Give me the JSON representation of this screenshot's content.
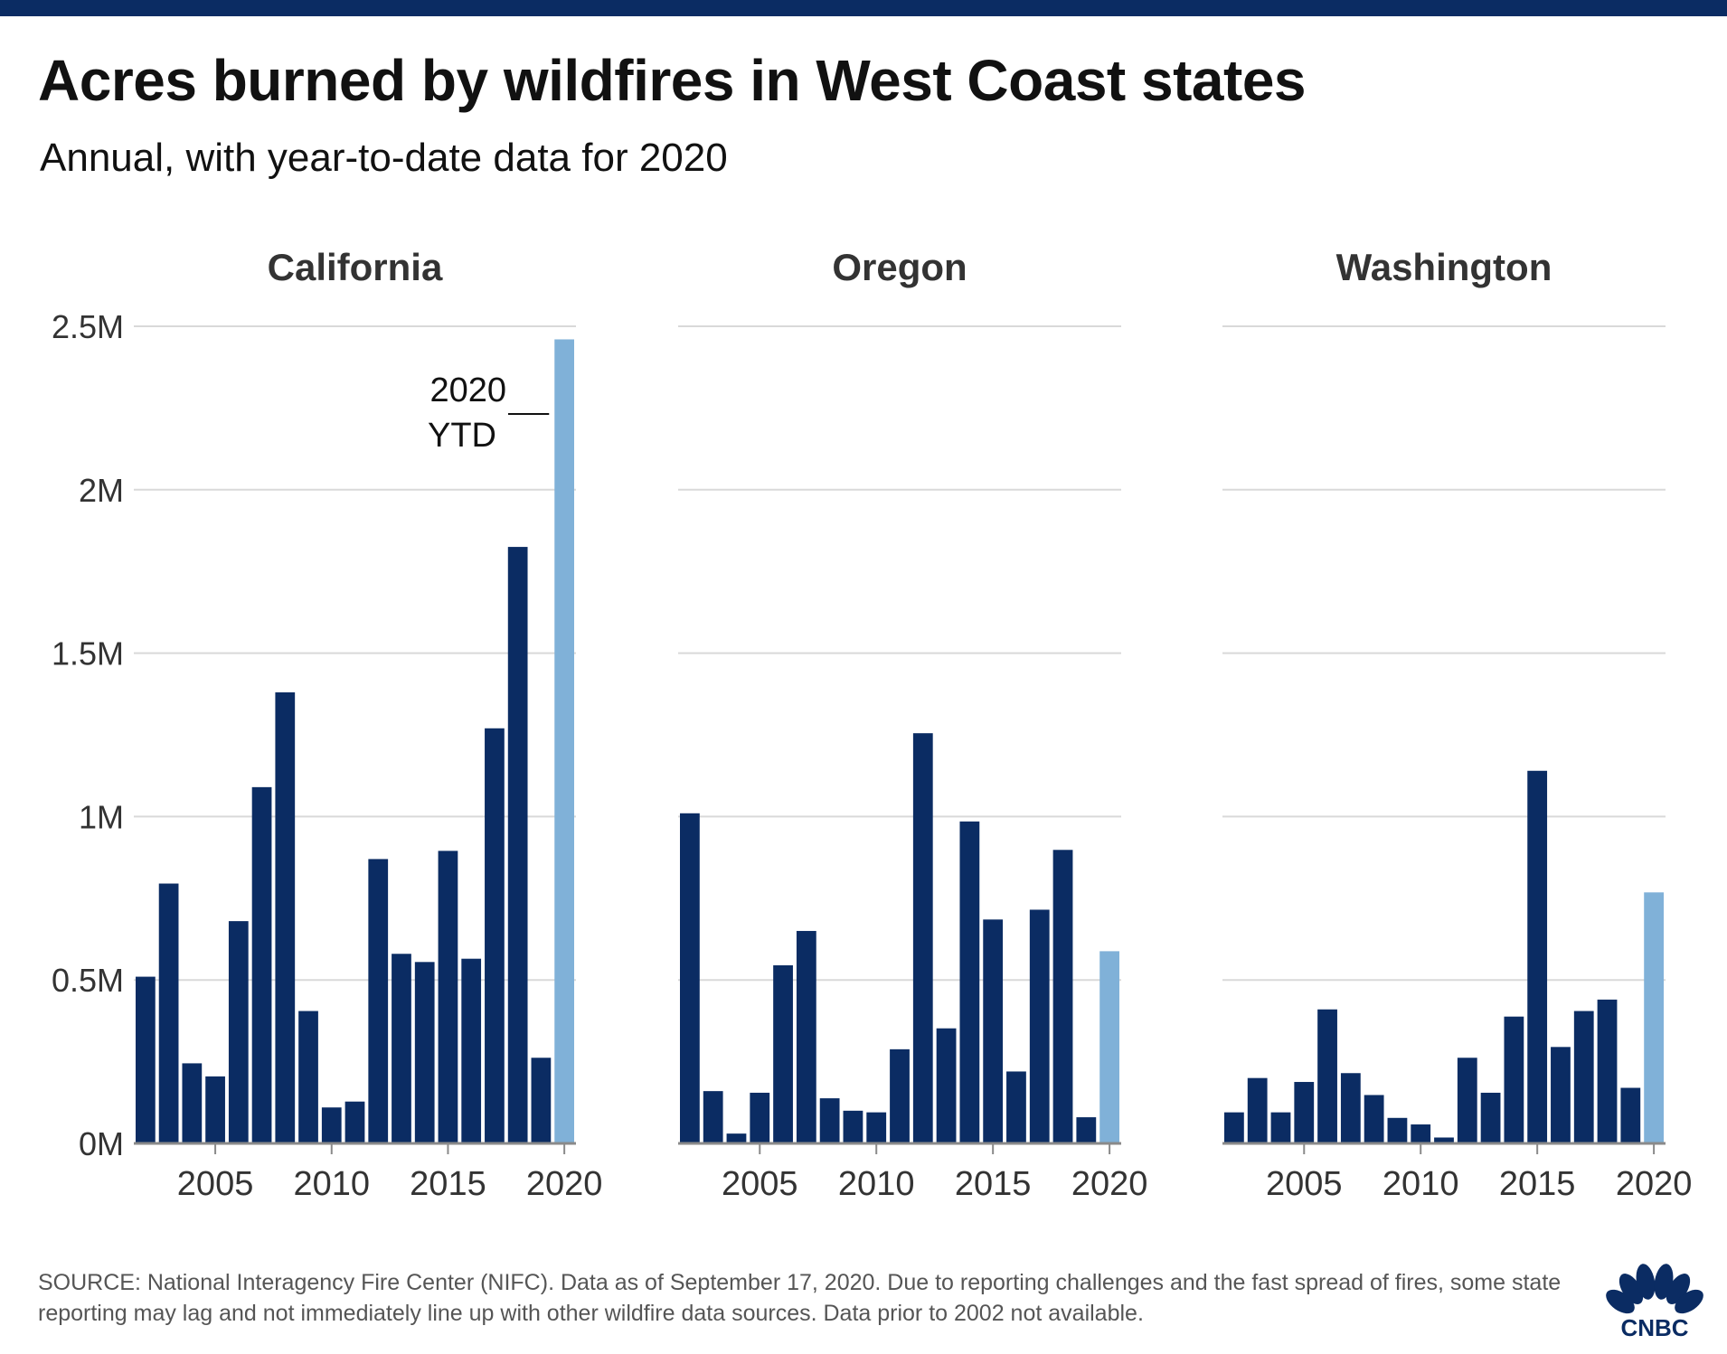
{
  "header": {
    "title": "Acres burned by wildfires in West Coast states",
    "subtitle": "Annual, with year-to-date data for 2020"
  },
  "annotation": {
    "line1": "2020",
    "line2": "YTD"
  },
  "footer": {
    "source": "SOURCE: National Interagency Fire Center (NIFC). Data as of September 17, 2020. Due to reporting challenges and the fast spread of fires, some state reporting may lag and not immediately line up with other wildfire data sources. Data prior to 2002 not available."
  },
  "logo": {
    "text": "CNBC"
  },
  "colors": {
    "bar": "#0b2c63",
    "ytd_bar": "#80b1d8",
    "grid": "#d9d9d9",
    "axis": "#8a8a8a",
    "brand": "#0b2c63"
  },
  "chart_data": [
    {
      "type": "bar",
      "title": "California",
      "x": [
        2002,
        2003,
        2004,
        2005,
        2006,
        2007,
        2008,
        2009,
        2010,
        2011,
        2012,
        2013,
        2014,
        2015,
        2016,
        2017,
        2018,
        2019,
        2020
      ],
      "values": [
        510000,
        795000,
        245000,
        205000,
        680000,
        1090000,
        1380000,
        405000,
        110000,
        128000,
        870000,
        580000,
        555000,
        895000,
        565000,
        1270000,
        1825000,
        262000,
        2460000
      ],
      "highlight_index": 18,
      "ylim": [
        0,
        2500000
      ],
      "yticks": [
        0,
        500000,
        1000000,
        1500000,
        2000000,
        2500000
      ],
      "ytick_labels": [
        "0M",
        "0.5M",
        "1M",
        "1.5M",
        "2M",
        "2.5M"
      ],
      "xticks": [
        2005,
        2010,
        2015,
        2020
      ],
      "xtick_labels": [
        "2005",
        "2010",
        "2015",
        "2020"
      ],
      "grid": true
    },
    {
      "type": "bar",
      "title": "Oregon",
      "x": [
        2002,
        2003,
        2004,
        2005,
        2006,
        2007,
        2008,
        2009,
        2010,
        2011,
        2012,
        2013,
        2014,
        2015,
        2016,
        2017,
        2018,
        2019,
        2020
      ],
      "values": [
        1010000,
        160000,
        30000,
        155000,
        545000,
        650000,
        138000,
        100000,
        95000,
        288000,
        1255000,
        352000,
        985000,
        685000,
        220000,
        715000,
        898000,
        80000,
        588000
      ],
      "highlight_index": 18,
      "ylim": [
        0,
        2500000
      ],
      "yticks": [
        0,
        500000,
        1000000,
        1500000,
        2000000,
        2500000
      ],
      "xticks": [
        2005,
        2010,
        2015,
        2020
      ],
      "xtick_labels": [
        "2005",
        "2010",
        "2015",
        "2020"
      ],
      "grid": true
    },
    {
      "type": "bar",
      "title": "Washington",
      "x": [
        2002,
        2003,
        2004,
        2005,
        2006,
        2007,
        2008,
        2009,
        2010,
        2011,
        2012,
        2013,
        2014,
        2015,
        2016,
        2017,
        2018,
        2019,
        2020
      ],
      "values": [
        95000,
        200000,
        95000,
        188000,
        410000,
        215000,
        148000,
        78000,
        58000,
        18000,
        262000,
        155000,
        388000,
        1140000,
        295000,
        405000,
        440000,
        170000,
        768000
      ],
      "highlight_index": 18,
      "ylim": [
        0,
        2500000
      ],
      "yticks": [
        0,
        500000,
        1000000,
        1500000,
        2000000,
        2500000
      ],
      "xticks": [
        2005,
        2010,
        2015,
        2020
      ],
      "xtick_labels": [
        "2005",
        "2010",
        "2015",
        "2020"
      ],
      "grid": true
    }
  ]
}
